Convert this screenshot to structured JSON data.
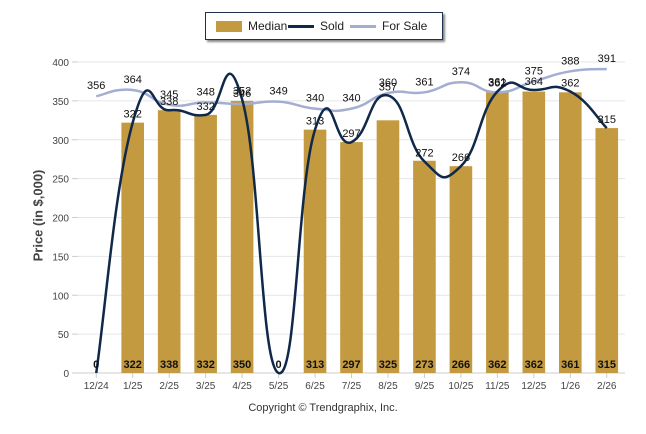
{
  "chart_data": {
    "type": "bar",
    "title": "",
    "xlabel": "",
    "ylabel": "Price (in $,000)",
    "ylim": [
      0,
      400
    ],
    "yticks": [
      0,
      50,
      100,
      150,
      200,
      250,
      300,
      350,
      400
    ],
    "grid": true,
    "legend_position": "top-center",
    "categories": [
      "12/24",
      "1/25",
      "2/25",
      "3/25",
      "4/25",
      "5/25",
      "6/25",
      "7/25",
      "8/25",
      "9/25",
      "10/25",
      "11/25",
      "12/25",
      "1/26",
      "2/26"
    ],
    "series": [
      {
        "name": "Median",
        "kind": "bar",
        "color": "#c39a3f",
        "values": [
          0,
          322,
          338,
          332,
          350,
          0,
          313,
          297,
          325,
          273,
          266,
          362,
          362,
          361,
          315
        ]
      },
      {
        "name": "Sold",
        "kind": "line",
        "color": "#10284a",
        "values": [
          0,
          322,
          338,
          332,
          352,
          0,
          313,
          297,
          357,
          272,
          266,
          362,
          364,
          362,
          315
        ]
      },
      {
        "name": "For Sale",
        "kind": "line",
        "color": "#a3aed0",
        "values": [
          356,
          364,
          345,
          348,
          346,
          349,
          340,
          340,
          360,
          361,
          374,
          361,
          375,
          388,
          391
        ]
      }
    ]
  },
  "legend": {
    "median": "Median",
    "sold": "Sold",
    "for_sale": "For Sale"
  },
  "copyright": "Copyright © Trendgraphix, Inc."
}
